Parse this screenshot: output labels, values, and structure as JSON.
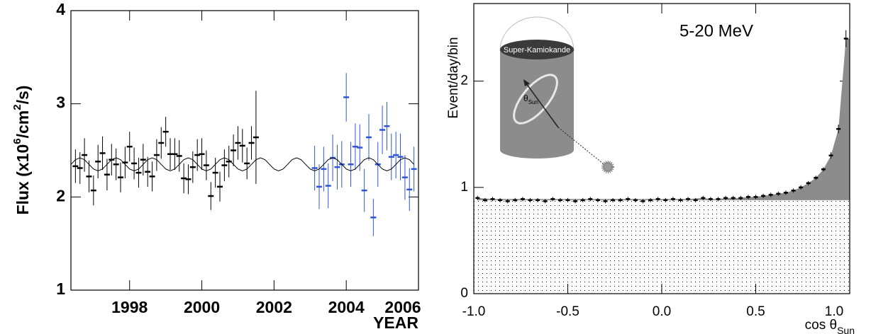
{
  "chart_data": [
    {
      "type": "scatter",
      "y_label_parts": [
        "Flux (x10",
        "6",
        "/cm",
        "2",
        "/s)"
      ],
      "x_label": "YEAR",
      "xlim": [
        1996.375,
        2006.0
      ],
      "xticks": [
        1998,
        2000,
        2002,
        2004,
        2006
      ],
      "ylim": [
        1,
        4
      ],
      "yticks": [
        1,
        2,
        3,
        4
      ],
      "series": [
        {
          "color": "#000000",
          "x": [
            1996.5,
            1996.625,
            1996.75,
            1996.875,
            1997,
            1997.125,
            1997.25,
            1997.375,
            1997.5,
            1997.625,
            1997.75,
            1997.875,
            1998,
            1998.125,
            1998.25,
            1998.375,
            1998.5,
            1998.625,
            1998.75,
            1998.875,
            1999,
            1999.125,
            1999.25,
            1999.375,
            1999.5,
            1999.625,
            1999.75,
            1999.875,
            2000,
            2000.125,
            2000.25,
            2000.375,
            2000.5,
            2000.625,
            2000.75,
            2000.875,
            2001,
            2001.125,
            2001.25,
            2001.375,
            2001.5
          ],
          "values": [
            2.33,
            2.31,
            2.45,
            2.22,
            2.07,
            2.38,
            2.47,
            2.24,
            2.4,
            2.35,
            2.21,
            2.37,
            2.54,
            2.36,
            2.26,
            2.4,
            2.27,
            2.22,
            2.45,
            2.58,
            2.7,
            2.46,
            2.46,
            2.44,
            2.2,
            2.19,
            2.32,
            2.45,
            2.46,
            2.34,
            2.01,
            2.26,
            2.11,
            2.34,
            2.38,
            2.5,
            2.58,
            2.55,
            2.36,
            2.58,
            2.64
          ],
          "errors": [
            0.18,
            0.17,
            0.18,
            0.17,
            0.16,
            0.18,
            0.18,
            0.17,
            0.17,
            0.17,
            0.16,
            0.17,
            0.16,
            0.17,
            0.16,
            0.17,
            0.16,
            0.16,
            0.17,
            0.17,
            0.16,
            0.17,
            0.17,
            0.17,
            0.16,
            0.16,
            0.17,
            0.17,
            0.17,
            0.16,
            0.15,
            0.16,
            0.16,
            0.17,
            0.17,
            0.17,
            0.18,
            0.18,
            0.17,
            0.18,
            0.5
          ]
        },
        {
          "color": "#2f55d4",
          "x": [
            2003.125,
            2003.25,
            2003.375,
            2003.5,
            2003.625,
            2003.75,
            2003.875,
            2004,
            2004.125,
            2004.25,
            2004.375,
            2004.5,
            2004.625,
            2004.75,
            2004.875,
            2005,
            2005.125,
            2005.25,
            2005.375,
            2005.5,
            2005.625,
            2005.75,
            2005.875
          ],
          "values": [
            2.31,
            2.11,
            2.3,
            2.12,
            2.42,
            2.32,
            2.35,
            3.07,
            2.35,
            2.54,
            2.53,
            2.07,
            2.64,
            1.78,
            2.35,
            2.72,
            2.76,
            2.43,
            2.45,
            2.43,
            2.21,
            2.08,
            2.3
          ],
          "errors": [
            0.24,
            0.24,
            0.24,
            0.24,
            0.25,
            0.24,
            0.25,
            0.26,
            0.24,
            0.25,
            0.25,
            0.23,
            0.25,
            0.2,
            0.24,
            0.26,
            0.26,
            0.25,
            0.25,
            0.25,
            0.24,
            0.23,
            0.24
          ]
        },
        {
          "type": "line",
          "color": "#000000",
          "x": [
            1996.375,
            1996.5,
            1996.625,
            1996.75,
            1996.875,
            1997,
            1997.125,
            1997.25,
            1997.375,
            1997.5,
            1997.625,
            1997.75,
            1997.875,
            1998,
            1998.125,
            1998.25,
            1998.375,
            1998.5,
            1998.625,
            1998.75,
            1998.875,
            1999,
            1999.125,
            1999.25,
            1999.375,
            1999.5,
            1999.625,
            1999.75,
            1999.875,
            2000,
            2000.125,
            2000.25,
            2000.375,
            2000.5,
            2000.625,
            2000.75,
            2000.875,
            2001,
            2001.125,
            2001.25,
            2001.375,
            2001.5,
            2001.625,
            2001.75,
            2001.875,
            2002,
            2002.125,
            2002.25,
            2002.375,
            2002.5,
            2002.625,
            2002.75,
            2002.875,
            2003,
            2003.125,
            2003.25,
            2003.375,
            2003.5,
            2003.625,
            2003.75,
            2003.875,
            2004,
            2004.125,
            2004.25,
            2004.375,
            2004.5,
            2004.625,
            2004.75,
            2004.875,
            2005,
            2005.125,
            2005.25,
            2005.375,
            2005.5,
            2005.625,
            2005.75,
            2005.875
          ],
          "values": [
            2.35,
            2.4,
            2.42,
            2.4,
            2.35,
            2.3,
            2.28,
            2.3,
            2.35,
            2.4,
            2.42,
            2.4,
            2.35,
            2.3,
            2.28,
            2.3,
            2.35,
            2.4,
            2.42,
            2.4,
            2.35,
            2.3,
            2.28,
            2.3,
            2.35,
            2.4,
            2.42,
            2.4,
            2.35,
            2.3,
            2.28,
            2.3,
            2.35,
            2.4,
            2.42,
            2.4,
            2.35,
            2.3,
            2.28,
            2.3,
            2.35,
            2.4,
            2.42,
            2.4,
            2.35,
            2.3,
            2.28,
            2.3,
            2.35,
            2.4,
            2.42,
            2.4,
            2.35,
            2.3,
            2.28,
            2.3,
            2.35,
            2.4,
            2.42,
            2.4,
            2.35,
            2.3,
            2.28,
            2.3,
            2.35,
            2.4,
            2.42,
            2.4,
            2.35,
            2.3,
            2.28,
            2.3,
            2.35,
            2.4,
            2.42,
            2.4,
            2.35
          ]
        }
      ]
    },
    {
      "type": "scatter",
      "annotation": "5-20 MeV",
      "y_label": "Event/day/bin",
      "x_label": {
        "text": "cos θ",
        "subscript": "Sun"
      },
      "inset": {
        "title": "Super-Kamiokande",
        "angle_label": {
          "symbol": "θ",
          "subscript": "Sun"
        }
      },
      "background_level": 0.88,
      "xlim": [
        -1,
        1
      ],
      "xticks": [
        {
          "value": -1,
          "label": "-1.0"
        },
        {
          "value": -0.5,
          "label": "-0.5"
        },
        {
          "value": 0,
          "label": "0.0"
        },
        {
          "value": 0.5,
          "label": "0.5"
        },
        {
          "value": 1,
          "label": "1.0"
        }
      ],
      "ylim": [
        0,
        2.73
      ],
      "yticks": [
        0,
        1,
        2
      ],
      "series": [
        {
          "color": "#000000",
          "x": [
            -0.98,
            -0.94,
            -0.9,
            -0.86,
            -0.82,
            -0.78,
            -0.74,
            -0.7,
            -0.66,
            -0.62,
            -0.58,
            -0.54,
            -0.5,
            -0.46,
            -0.42,
            -0.38,
            -0.34,
            -0.3,
            -0.26,
            -0.22,
            -0.18,
            -0.14,
            -0.1,
            -0.06,
            -0.02,
            0.02,
            0.06,
            0.1,
            0.14,
            0.18,
            0.22,
            0.26,
            0.3,
            0.34,
            0.38,
            0.42,
            0.46,
            0.5,
            0.54,
            0.58,
            0.62,
            0.66,
            0.7,
            0.74,
            0.78,
            0.82,
            0.86,
            0.9,
            0.94,
            0.98
          ],
          "values": [
            0.9,
            0.88,
            0.89,
            0.88,
            0.87,
            0.88,
            0.89,
            0.88,
            0.88,
            0.87,
            0.89,
            0.88,
            0.88,
            0.87,
            0.88,
            0.89,
            0.88,
            0.87,
            0.88,
            0.88,
            0.89,
            0.88,
            0.87,
            0.88,
            0.89,
            0.88,
            0.89,
            0.88,
            0.89,
            0.88,
            0.9,
            0.89,
            0.89,
            0.9,
            0.9,
            0.9,
            0.91,
            0.91,
            0.92,
            0.93,
            0.94,
            0.95,
            0.97,
            1.0,
            1.04,
            1.09,
            1.17,
            1.3,
            1.55,
            2.4
          ],
          "errors": [
            0.02,
            0.02,
            0.02,
            0.02,
            0.02,
            0.02,
            0.02,
            0.02,
            0.02,
            0.02,
            0.02,
            0.02,
            0.02,
            0.02,
            0.02,
            0.02,
            0.02,
            0.02,
            0.02,
            0.02,
            0.02,
            0.02,
            0.02,
            0.02,
            0.02,
            0.02,
            0.02,
            0.02,
            0.02,
            0.02,
            0.02,
            0.02,
            0.02,
            0.02,
            0.02,
            0.02,
            0.02,
            0.02,
            0.02,
            0.02,
            0.02,
            0.02,
            0.02,
            0.02,
            0.02,
            0.02,
            0.02,
            0.03,
            0.04,
            0.08
          ]
        }
      ]
    }
  ]
}
